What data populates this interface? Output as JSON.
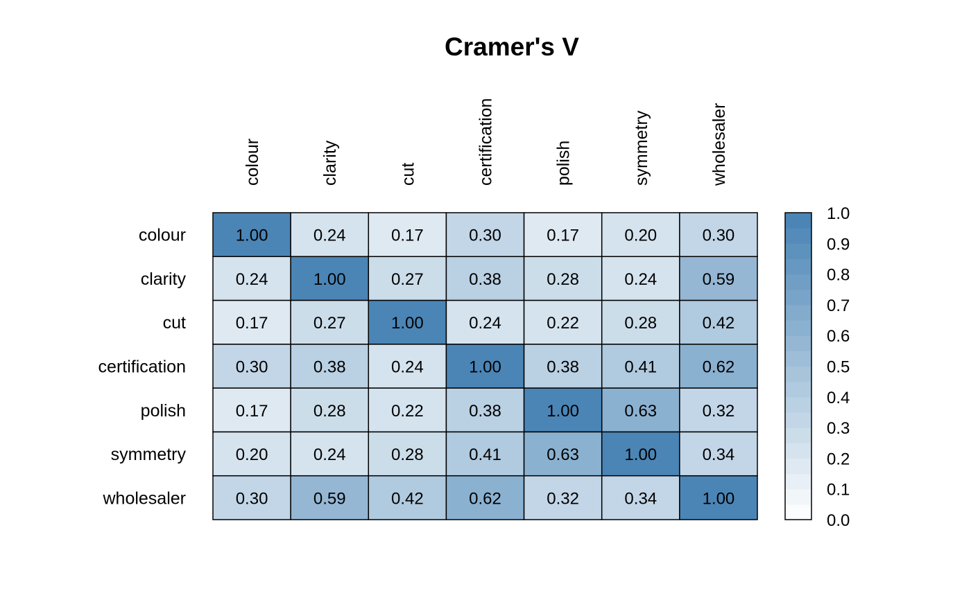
{
  "chart_data": {
    "type": "heatmap",
    "title": "Cramer's V",
    "rows": [
      "colour",
      "clarity",
      "cut",
      "certification",
      "polish",
      "symmetry",
      "wholesaler"
    ],
    "columns": [
      "colour",
      "clarity",
      "cut",
      "certification",
      "polish",
      "symmetry",
      "wholesaler"
    ],
    "values": [
      [
        1.0,
        0.24,
        0.17,
        0.3,
        0.17,
        0.2,
        0.3
      ],
      [
        0.24,
        1.0,
        0.27,
        0.38,
        0.28,
        0.24,
        0.59
      ],
      [
        0.17,
        0.27,
        1.0,
        0.24,
        0.22,
        0.28,
        0.42
      ],
      [
        0.3,
        0.38,
        0.24,
        1.0,
        0.38,
        0.41,
        0.62
      ],
      [
        0.17,
        0.28,
        0.22,
        0.38,
        1.0,
        0.63,
        0.32
      ],
      [
        0.2,
        0.24,
        0.28,
        0.41,
        0.63,
        1.0,
        0.34
      ],
      [
        0.3,
        0.59,
        0.42,
        0.62,
        0.32,
        0.34,
        1.0
      ]
    ],
    "cell_labels": [
      [
        "1.00",
        "0.24",
        "0.17",
        "0.30",
        "0.17",
        "0.20",
        "0.30"
      ],
      [
        "0.24",
        "1.00",
        "0.27",
        "0.38",
        "0.28",
        "0.24",
        "0.59"
      ],
      [
        "0.17",
        "0.27",
        "1.00",
        "0.24",
        "0.22",
        "0.28",
        "0.42"
      ],
      [
        "0.30",
        "0.38",
        "0.24",
        "1.00",
        "0.38",
        "0.41",
        "0.62"
      ],
      [
        "0.17",
        "0.28",
        "0.22",
        "0.38",
        "1.00",
        "0.63",
        "0.32"
      ],
      [
        "0.20",
        "0.24",
        "0.28",
        "0.41",
        "0.63",
        "1.00",
        "0.34"
      ],
      [
        "0.30",
        "0.59",
        "0.42",
        "0.62",
        "0.32",
        "0.34",
        "1.00"
      ]
    ],
    "color_scale": {
      "range": [
        0,
        1
      ],
      "low_color": "#ffffff",
      "high_color": "#4682b4",
      "steps": 20,
      "tick_labels": [
        "0.0",
        "0.1",
        "0.2",
        "0.3",
        "0.4",
        "0.5",
        "0.6",
        "0.7",
        "0.8",
        "0.9",
        "1.0"
      ]
    },
    "legend_position": "right",
    "column_label_orientation": "vertical",
    "grid_color": "#000000"
  }
}
